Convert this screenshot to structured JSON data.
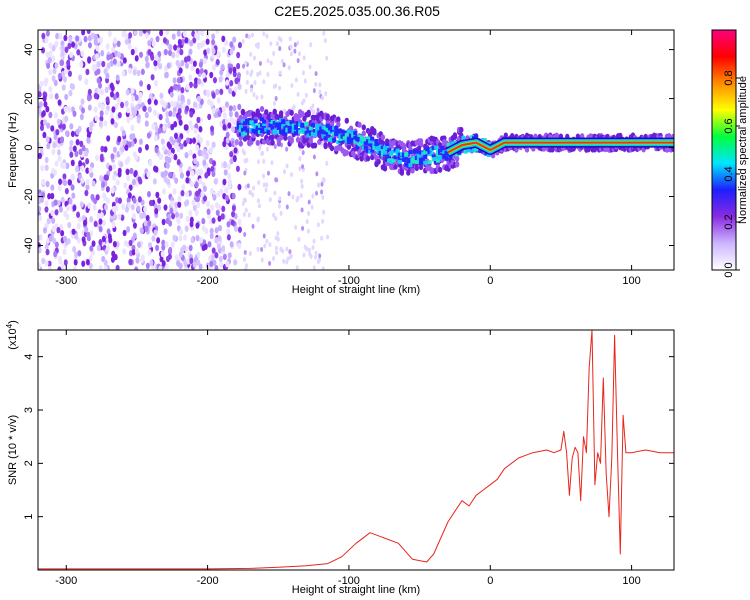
{
  "figure": {
    "title": "C2E5.2025.035.00.36.R05"
  },
  "chart_data": [
    {
      "type": "heatmap",
      "xlabel": "Height of straight line (km)",
      "ylabel": "Frequency (Hz)",
      "xlim": [
        -320,
        130
      ],
      "ylim": [
        -50,
        48
      ],
      "x_ticks": [
        -300,
        -200,
        -100,
        0,
        100
      ],
      "y_ticks": [
        -40,
        -20,
        0,
        20,
        40
      ],
      "grid": false,
      "colorbar": {
        "label": "Normalized spectral amplitude",
        "range": [
          0,
          1
        ],
        "ticks": [
          0.0,
          0.2,
          0.4,
          0.6,
          0.8
        ],
        "colors": [
          "#ffffff",
          "#cdb6ff",
          "#8a2be2",
          "#1e1eff",
          "#00e5ff",
          "#00ff3c",
          "#ffff00",
          "#ff8c00",
          "#ff0000",
          "#ff007f"
        ]
      },
      "signal_ridge": [
        {
          "x": -178,
          "y": 8
        },
        {
          "x": -160,
          "y": 9
        },
        {
          "x": -140,
          "y": 8
        },
        {
          "x": -120,
          "y": 7
        },
        {
          "x": -100,
          "y": 4
        },
        {
          "x": -90,
          "y": 2
        },
        {
          "x": -80,
          "y": 0
        },
        {
          "x": -70,
          "y": -3
        },
        {
          "x": -60,
          "y": -5
        },
        {
          "x": -50,
          "y": -4
        },
        {
          "x": -40,
          "y": -3
        },
        {
          "x": -30,
          "y": -2
        },
        {
          "x": -20,
          "y": 1
        },
        {
          "x": -10,
          "y": 2
        },
        {
          "x": 0,
          "y": -1
        },
        {
          "x": 10,
          "y": 2
        },
        {
          "x": 30,
          "y": 2
        },
        {
          "x": 60,
          "y": 2
        },
        {
          "x": 90,
          "y": 2
        },
        {
          "x": 130,
          "y": 2
        }
      ]
    },
    {
      "type": "line",
      "xlabel": "Height of straight line (km)",
      "ylabel": "SNR (10 * v/v)",
      "y_multiplier": "(x10",
      "y_multiplier_exp": "4",
      "xlim": [
        -320,
        130
      ],
      "ylim": [
        0,
        4.5
      ],
      "x_ticks": [
        -300,
        -200,
        -100,
        0,
        100
      ],
      "y_ticks": [
        1,
        2,
        3,
        4
      ],
      "grid": false,
      "series_color": "#e8261d",
      "series": [
        {
          "x": [
            -320,
            -200,
            -170,
            -150,
            -130,
            -115,
            -105,
            -95,
            -85,
            -75,
            -65,
            -55,
            -45,
            -40,
            -35,
            -30,
            -25,
            -20,
            -15,
            -10,
            -5,
            0,
            5,
            10,
            15,
            20,
            25,
            30,
            40,
            45,
            50,
            52,
            54,
            56,
            58,
            60,
            62,
            64,
            66,
            68,
            70,
            72,
            74,
            76,
            78,
            80,
            82,
            84,
            86,
            88,
            90,
            92,
            94,
            96,
            98,
            100,
            110,
            120,
            130
          ],
          "y": [
            0.02,
            0.02,
            0.03,
            0.05,
            0.08,
            0.12,
            0.25,
            0.5,
            0.7,
            0.6,
            0.5,
            0.2,
            0.15,
            0.3,
            0.6,
            0.9,
            1.1,
            1.3,
            1.2,
            1.4,
            1.5,
            1.6,
            1.7,
            1.9,
            2.0,
            2.1,
            2.15,
            2.2,
            2.25,
            2.2,
            2.25,
            2.6,
            2.2,
            1.4,
            2.1,
            2.3,
            2.2,
            1.3,
            2.5,
            2.2,
            3.8,
            4.5,
            1.6,
            2.2,
            2.0,
            3.6,
            1.8,
            1.0,
            2.1,
            4.4,
            2.2,
            0.3,
            2.9,
            2.2,
            2.2,
            2.2,
            2.25,
            2.2,
            2.2
          ]
        }
      ]
    }
  ]
}
